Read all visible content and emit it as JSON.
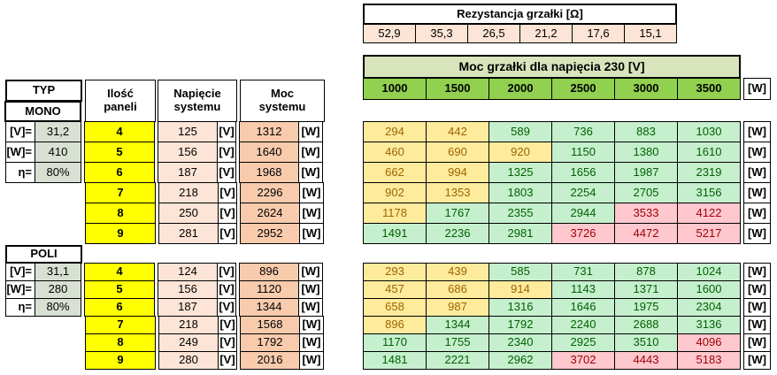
{
  "colors": {
    "spec_fill": "#d8e0d4",
    "panel_fill": "#ffff00",
    "voltage_fill": "#fce4d6",
    "power_fill": "#f8cbad",
    "resistance_fill": "#fce4d6",
    "matrix_title_fill": "#d8e4bc",
    "matrix_header_fill": "#92d050",
    "cell_yellow": "#ffeb9c",
    "cell_yellow_text": "#9c6500",
    "cell_green": "#c6efce",
    "cell_green_text": "#006100",
    "cell_pink": "#ffc7ce",
    "cell_pink_text": "#9c0006"
  },
  "resistance_table": {
    "title": "Rezystancja grzałki [Ω]",
    "values": [
      "52,9",
      "35,3",
      "26,5",
      "21,2",
      "17,6",
      "15,1"
    ]
  },
  "power_matrix": {
    "title": "Moc grzałki dla napięcia 230 [V]",
    "column_headers": [
      "1000",
      "1500",
      "2000",
      "2500",
      "3000",
      "3500"
    ],
    "unit_w": "[W]"
  },
  "left_table": {
    "headers": {
      "typ": "TYP",
      "panels": "Ilość\npaneli",
      "voltage": "Napięcie\nsystemu",
      "power": "Moc\nsystemu"
    },
    "unit_v": "[V]",
    "unit_w": "[W]"
  },
  "mono": {
    "name": "MONO",
    "specs": [
      {
        "label": "[V]=",
        "value": "31,2"
      },
      {
        "label": "[W]=",
        "value": "410"
      },
      {
        "label": "η=",
        "value": "80%"
      }
    ],
    "rows": [
      {
        "panels": "4",
        "voltage": "125",
        "power": "1312"
      },
      {
        "panels": "5",
        "voltage": "156",
        "power": "1640"
      },
      {
        "panels": "6",
        "voltage": "187",
        "power": "1968"
      },
      {
        "panels": "7",
        "voltage": "218",
        "power": "2296"
      },
      {
        "panels": "8",
        "voltage": "250",
        "power": "2624"
      },
      {
        "panels": "9",
        "voltage": "281",
        "power": "2952"
      }
    ],
    "matrix": [
      {
        "values": [
          "294",
          "442",
          "589",
          "736",
          "883",
          "1030"
        ],
        "colors": [
          "y",
          "y",
          "g",
          "g",
          "g",
          "g"
        ]
      },
      {
        "values": [
          "460",
          "690",
          "920",
          "1150",
          "1380",
          "1610"
        ],
        "colors": [
          "y",
          "y",
          "y",
          "g",
          "g",
          "g"
        ]
      },
      {
        "values": [
          "662",
          "994",
          "1325",
          "1656",
          "1987",
          "2319"
        ],
        "colors": [
          "y",
          "y",
          "g",
          "g",
          "g",
          "g"
        ]
      },
      {
        "values": [
          "902",
          "1353",
          "1803",
          "2254",
          "2705",
          "3156"
        ],
        "colors": [
          "y",
          "y",
          "g",
          "g",
          "g",
          "g"
        ]
      },
      {
        "values": [
          "1178",
          "1767",
          "2355",
          "2944",
          "3533",
          "4122"
        ],
        "colors": [
          "y",
          "g",
          "g",
          "g",
          "p",
          "p"
        ]
      },
      {
        "values": [
          "1491",
          "2236",
          "2981",
          "3726",
          "4472",
          "5217"
        ],
        "colors": [
          "g",
          "g",
          "g",
          "p",
          "p",
          "p"
        ]
      }
    ]
  },
  "poli": {
    "name": "POLI",
    "specs": [
      {
        "label": "[V]=",
        "value": "31,1"
      },
      {
        "label": "[W]=",
        "value": "280"
      },
      {
        "label": "η=",
        "value": "80%"
      }
    ],
    "rows": [
      {
        "panels": "4",
        "voltage": "124",
        "power": "896"
      },
      {
        "panels": "5",
        "voltage": "156",
        "power": "1120"
      },
      {
        "panels": "6",
        "voltage": "187",
        "power": "1344"
      },
      {
        "panels": "7",
        "voltage": "218",
        "power": "1568"
      },
      {
        "panels": "8",
        "voltage": "249",
        "power": "1792"
      },
      {
        "panels": "9",
        "voltage": "280",
        "power": "2016"
      }
    ],
    "matrix": [
      {
        "values": [
          "293",
          "439",
          "585",
          "731",
          "878",
          "1024"
        ],
        "colors": [
          "y",
          "y",
          "g",
          "g",
          "g",
          "g"
        ]
      },
      {
        "values": [
          "457",
          "686",
          "914",
          "1143",
          "1371",
          "1600"
        ],
        "colors": [
          "y",
          "y",
          "y",
          "g",
          "g",
          "g"
        ]
      },
      {
        "values": [
          "658",
          "987",
          "1316",
          "1646",
          "1975",
          "2304"
        ],
        "colors": [
          "y",
          "y",
          "g",
          "g",
          "g",
          "g"
        ]
      },
      {
        "values": [
          "896",
          "1344",
          "1792",
          "2240",
          "2688",
          "3136"
        ],
        "colors": [
          "y",
          "g",
          "g",
          "g",
          "g",
          "g"
        ]
      },
      {
        "values": [
          "1170",
          "1755",
          "2340",
          "2925",
          "3510",
          "4096"
        ],
        "colors": [
          "g",
          "g",
          "g",
          "g",
          "g",
          "p"
        ]
      },
      {
        "values": [
          "1481",
          "2221",
          "2962",
          "3702",
          "4443",
          "5183"
        ],
        "colors": [
          "g",
          "g",
          "g",
          "p",
          "p",
          "p"
        ]
      }
    ]
  }
}
